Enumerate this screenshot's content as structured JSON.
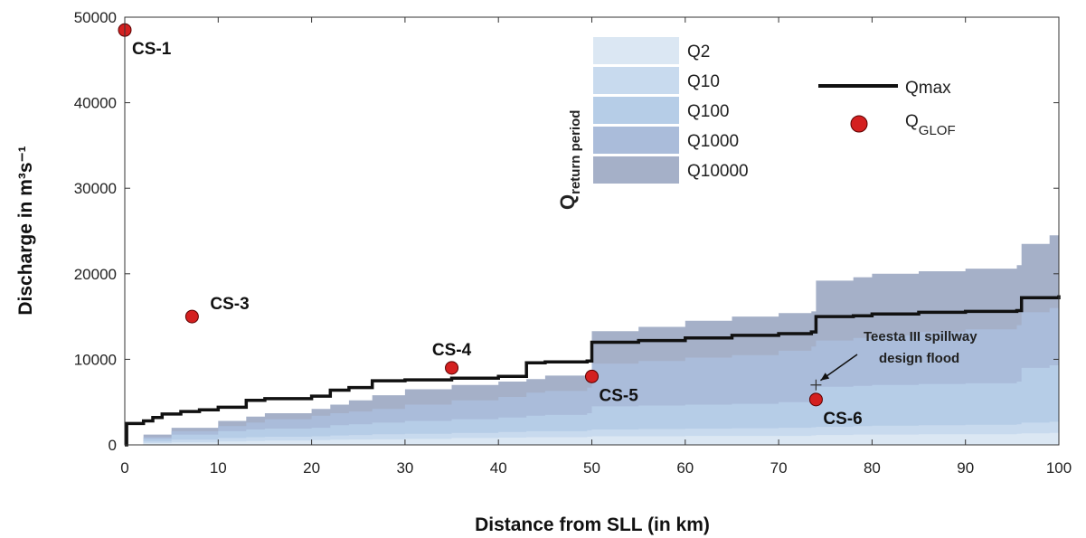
{
  "chart_data": {
    "type": "area",
    "xlabel": "Distance from SLL (in km)",
    "ylabel": "Discharge in m³s⁻¹",
    "xlim": [
      0,
      100
    ],
    "ylim": [
      0,
      50000
    ],
    "xticks": [
      0,
      10,
      20,
      30,
      40,
      50,
      60,
      70,
      80,
      90,
      100
    ],
    "yticks": [
      0,
      10000,
      20000,
      30000,
      40000,
      50000
    ],
    "grid": false,
    "x": [
      0,
      2,
      5,
      10,
      13,
      15,
      20,
      22,
      24,
      26.5,
      30,
      35,
      40,
      43,
      45,
      49.5,
      50,
      55,
      60,
      65,
      70,
      73.5,
      74,
      78,
      80,
      85,
      90,
      95.5,
      96,
      99,
      100
    ],
    "band_legend_title": "Q",
    "band_legend_title_sub": "return period",
    "series": [
      {
        "name": "Q2",
        "color": "#dbe7f3",
        "values": [
          0,
          200,
          300,
          400,
          450,
          500,
          550,
          600,
          620,
          650,
          700,
          800,
          850,
          900,
          900,
          950,
          1000,
          1000,
          1050,
          1050,
          1050,
          1100,
          1150,
          1200,
          1200,
          1250,
          1250,
          1300,
          1350,
          1400,
          1400
        ]
      },
      {
        "name": "Q10",
        "color": "#c8daee",
        "values": [
          0,
          400,
          600,
          800,
          900,
          950,
          1000,
          1100,
          1150,
          1250,
          1300,
          1400,
          1500,
          1600,
          1600,
          1700,
          1800,
          1850,
          1900,
          1950,
          2000,
          2050,
          2100,
          2200,
          2250,
          2300,
          2350,
          2400,
          2600,
          2700,
          2700
        ]
      },
      {
        "name": "Q100",
        "color": "#b6cde7",
        "values": [
          0,
          700,
          1200,
          1600,
          1800,
          1900,
          2000,
          2300,
          2400,
          2600,
          2800,
          3000,
          3200,
          3400,
          3500,
          3700,
          4500,
          4600,
          4700,
          4800,
          5000,
          5200,
          6800,
          6900,
          7000,
          7100,
          7200,
          7400,
          9000,
          9300,
          9400
        ]
      },
      {
        "name": "Q1000",
        "color": "#aabcda",
        "values": [
          0,
          900,
          1600,
          2200,
          2600,
          3000,
          3400,
          3700,
          3900,
          4200,
          4700,
          5200,
          5600,
          6100,
          6300,
          6700,
          9500,
          9800,
          10200,
          10500,
          11000,
          11500,
          12200,
          12500,
          12800,
          13200,
          13500,
          14000,
          15500,
          16000,
          16200
        ]
      },
      {
        "name": "Q10000",
        "color": "#a5b0c8",
        "values": [
          0,
          1200,
          2000,
          2800,
          3300,
          3700,
          4200,
          4700,
          5200,
          5800,
          6500,
          7000,
          7400,
          7700,
          8100,
          8500,
          13300,
          13800,
          14500,
          15000,
          15400,
          15600,
          19200,
          19600,
          20000,
          20300,
          20600,
          21000,
          23500,
          24500,
          25000
        ]
      }
    ],
    "qmax": {
      "name": "Qmax",
      "color": "#111111",
      "x": [
        0,
        0.2,
        2,
        3,
        4,
        6,
        8,
        10,
        13,
        15,
        20,
        22,
        24,
        26.5,
        30,
        35,
        40,
        43,
        45,
        49.5,
        50,
        55,
        60,
        65,
        70,
        73.5,
        74,
        78,
        80,
        85,
        90,
        95.5,
        96,
        100
      ],
      "values": [
        0,
        2500,
        2800,
        3200,
        3600,
        3900,
        4100,
        4400,
        5200,
        5400,
        5700,
        6400,
        6700,
        7500,
        7600,
        7800,
        8000,
        9600,
        9700,
        9800,
        12000,
        12200,
        12500,
        12800,
        13000,
        13200,
        15000,
        15100,
        15300,
        15500,
        15600,
        15700,
        17200,
        17500
      ]
    },
    "glof": {
      "name": "Q",
      "name_sub": "GLOF",
      "color": "#d42020",
      "points": [
        {
          "label": "CS-1",
          "x": 0,
          "y": 48500,
          "pos": "below-right"
        },
        {
          "label": "CS-3",
          "x": 7.2,
          "y": 15000,
          "pos": "above-right"
        },
        {
          "label": "CS-4",
          "x": 35,
          "y": 9000,
          "pos": "above"
        },
        {
          "label": "CS-5",
          "x": 50,
          "y": 8000,
          "pos": "below-right"
        },
        {
          "label": "CS-6",
          "x": 74,
          "y": 5300,
          "pos": "below-right"
        }
      ]
    },
    "annotation": {
      "line1": "Teesta III spillway",
      "line2": "design flood",
      "x": 74,
      "y": 7000
    }
  }
}
